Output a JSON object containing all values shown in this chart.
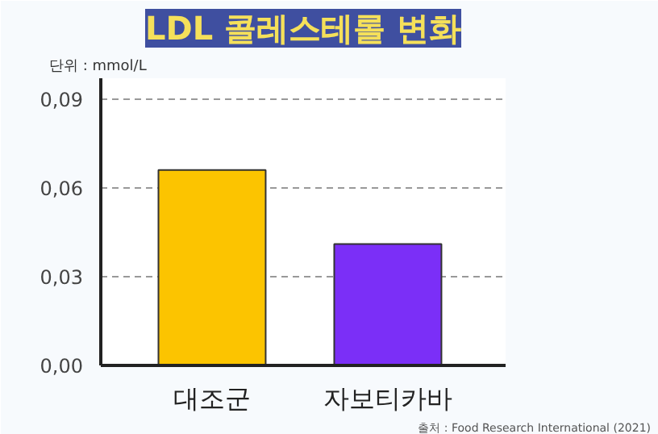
{
  "chart_data": {
    "type": "bar",
    "title": "LDL 콜레스테롤 변화",
    "ylabel": "단위 : mmol/L",
    "categories": [
      "대조군",
      "자보티카바"
    ],
    "values": [
      0.066,
      0.041
    ],
    "colors": [
      "#fcc400",
      "#7b2ff7"
    ],
    "ylim": [
      0,
      0.097
    ],
    "yticks": [
      {
        "value": 0,
        "label": "0,00"
      },
      {
        "value": 0.03,
        "label": "0,03"
      },
      {
        "value": 0.06,
        "label": "0,06"
      },
      {
        "value": 0.09,
        "label": "0,09"
      }
    ],
    "grid": "y",
    "annotations": [
      "출처 : Food Research International (2021)"
    ]
  }
}
